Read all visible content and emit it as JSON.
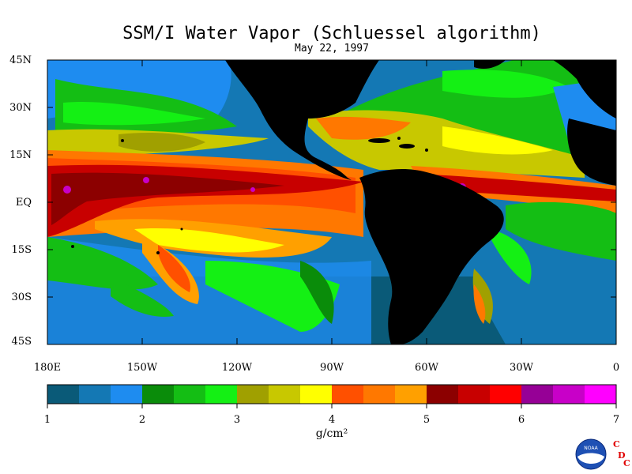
{
  "title": "SSM/I Water Vapor (Schluessel algorithm)",
  "subtitle": "May 22, 1997",
  "lat_labels": [
    "45N",
    "30N",
    "15N",
    "EQ",
    "15S",
    "30S",
    "45S"
  ],
  "lon_labels": [
    "180E",
    "150W",
    "120W",
    "90W",
    "60W",
    "30W",
    "0"
  ],
  "colorbar": {
    "min": 1,
    "max": 7,
    "tick_labels": [
      "1",
      "2",
      "3",
      "4",
      "5",
      "6",
      "7"
    ],
    "unit": "g/cm²",
    "colors": [
      "#0a5a78",
      "#1478b4",
      "#1e8cf0",
      "#0a8c0a",
      "#14be14",
      "#14f014",
      "#a0a000",
      "#c8c800",
      "#ffff00",
      "#ff5000",
      "#ff7800",
      "#ffa000",
      "#8c0000",
      "#c80000",
      "#ff0000",
      "#960096",
      "#c800c8",
      "#ff00ff"
    ]
  },
  "logo": {
    "badge_text": "NOAA",
    "letters": [
      "C",
      "D",
      "C"
    ],
    "letter_color": "#e00000"
  }
}
